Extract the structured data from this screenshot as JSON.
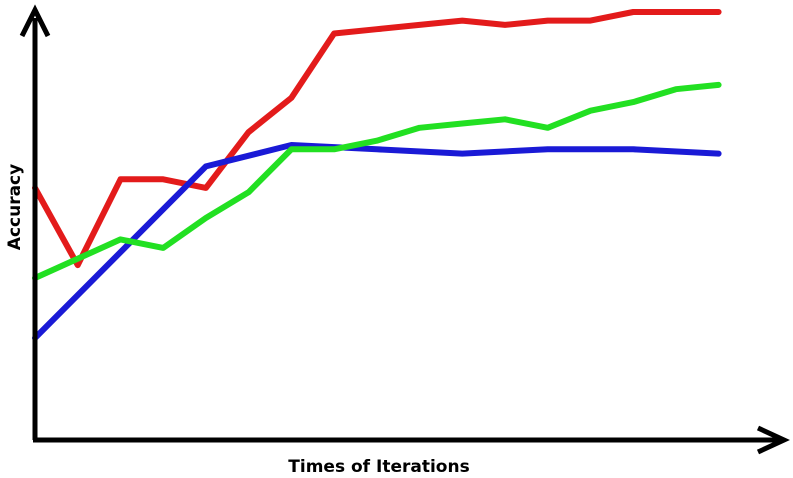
{
  "chart_data": {
    "type": "line",
    "title": "",
    "xlabel": "Times of Iterations",
    "ylabel": "Accuracy",
    "xlim": [
      0,
      16.5
    ],
    "ylim": [
      0,
      100
    ],
    "grid": false,
    "legend": "none",
    "series": [
      {
        "color": "#e31b1b",
        "x": [
          0,
          1,
          2,
          3,
          4,
          5,
          6,
          7,
          8,
          9,
          10,
          11,
          12,
          13,
          14,
          15,
          16
        ],
        "y": [
          59,
          41,
          61,
          61,
          59,
          72,
          80,
          95,
          96,
          97,
          98,
          97,
          98,
          98,
          100,
          100,
          100
        ]
      },
      {
        "color": "#1a1ad6",
        "x": [
          0,
          4,
          6,
          8,
          10,
          12,
          14,
          16
        ],
        "y": [
          24,
          64,
          69,
          68,
          67,
          68,
          68,
          67
        ]
      },
      {
        "color": "#22e022",
        "x": [
          0,
          2,
          3,
          4,
          5,
          6,
          7,
          8,
          9,
          10,
          11,
          12,
          13,
          14,
          15,
          16
        ],
        "y": [
          38,
          47,
          45,
          52,
          58,
          68,
          68,
          70,
          73,
          74,
          75,
          73,
          77,
          79,
          82,
          83
        ]
      }
    ]
  }
}
